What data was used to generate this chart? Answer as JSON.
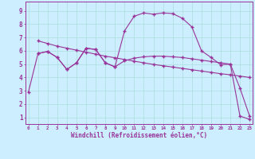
{
  "title": "",
  "xlabel": "Windchill (Refroidissement éolien,°C)",
  "bg_color": "#cceeff",
  "grid_color": "#aadddd",
  "line_color": "#993399",
  "x_ticks": [
    0,
    1,
    2,
    3,
    4,
    5,
    6,
    7,
    8,
    9,
    10,
    11,
    12,
    13,
    14,
    15,
    16,
    17,
    18,
    19,
    20,
    21,
    22,
    23
  ],
  "y_ticks": [
    1,
    2,
    3,
    4,
    5,
    6,
    7,
    8,
    9
  ],
  "xlim": [
    -0.3,
    23.3
  ],
  "ylim": [
    0.5,
    9.7
  ],
  "line1_x": [
    0,
    1,
    2,
    3,
    4,
    5,
    6,
    7,
    8,
    9,
    10,
    11,
    12,
    13,
    14,
    15,
    16,
    17,
    18,
    19,
    20,
    21,
    22,
    23
  ],
  "line1_y": [
    2.9,
    5.8,
    5.95,
    5.5,
    4.6,
    5.1,
    6.2,
    6.1,
    5.1,
    4.8,
    7.5,
    8.6,
    8.85,
    8.75,
    8.85,
    8.8,
    8.45,
    7.8,
    6.0,
    5.5,
    4.95,
    5.0,
    1.1,
    0.85
  ],
  "line2_x": [
    1,
    2,
    3,
    4,
    5,
    6,
    7,
    8,
    9,
    10,
    11,
    12,
    13,
    14,
    15,
    16,
    17,
    18,
    19,
    20,
    21,
    22,
    23
  ],
  "line2_y": [
    6.75,
    6.55,
    6.35,
    6.2,
    6.05,
    5.9,
    5.75,
    5.6,
    5.48,
    5.35,
    5.22,
    5.1,
    4.98,
    4.88,
    4.78,
    4.68,
    4.58,
    4.48,
    4.38,
    4.28,
    4.2,
    4.1,
    4.0
  ],
  "line3_x": [
    1,
    2,
    3,
    4,
    5,
    6,
    7,
    8,
    9,
    10,
    11,
    12,
    13,
    14,
    15,
    16,
    17,
    18,
    19,
    20,
    21,
    22,
    23
  ],
  "line3_y": [
    5.8,
    5.95,
    5.5,
    4.6,
    5.1,
    6.2,
    6.1,
    5.1,
    4.8,
    5.25,
    5.45,
    5.55,
    5.6,
    5.6,
    5.55,
    5.5,
    5.4,
    5.3,
    5.2,
    5.1,
    5.0,
    3.2,
    1.1
  ]
}
